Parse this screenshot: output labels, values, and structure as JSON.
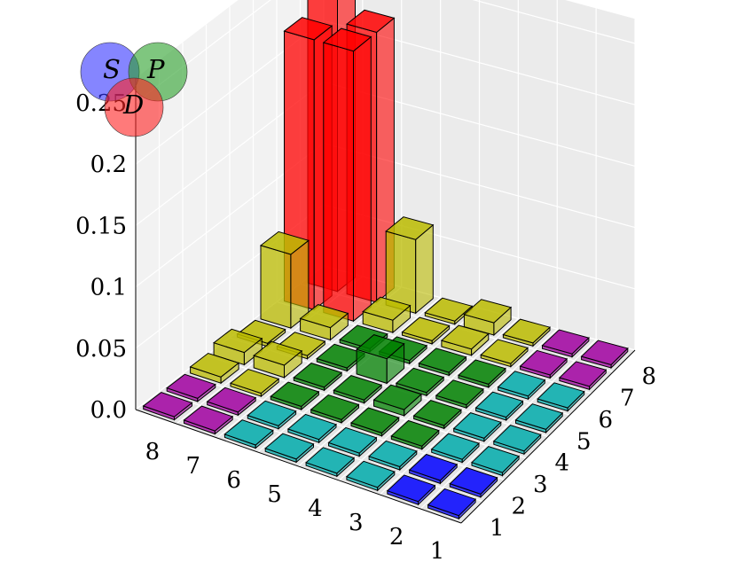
{
  "chart_data": {
    "type": "bar3d",
    "grid": true,
    "zlim": [
      0,
      0.25
    ],
    "z_ticks": [
      "0.0",
      "0.05",
      "0.1",
      "0.15",
      "0.2",
      "0.25"
    ],
    "x_ticks": [
      "1",
      "2",
      "3",
      "4",
      "5",
      "6",
      "7",
      "8"
    ],
    "y_ticks": [
      "1",
      "2",
      "3",
      "4",
      "5",
      "6",
      "7",
      "8"
    ],
    "colors": {
      "D": "#ff0000",
      "S": "#0000ff",
      "P": "#008000",
      "SP": "#00aaaa",
      "DS": "#a000a0",
      "DP": "#bbbb00"
    },
    "cells": [
      {
        "x": 1,
        "y": 1,
        "z": 0.0,
        "c": "S"
      },
      {
        "x": 1,
        "y": 2,
        "z": 0.0,
        "c": "S"
      },
      {
        "x": 1,
        "y": 3,
        "z": 0.0,
        "c": "SP"
      },
      {
        "x": 1,
        "y": 4,
        "z": 0.0,
        "c": "SP"
      },
      {
        "x": 1,
        "y": 5,
        "z": 0.0,
        "c": "SP"
      },
      {
        "x": 1,
        "y": 6,
        "z": 0.0,
        "c": "SP"
      },
      {
        "x": 1,
        "y": 7,
        "z": 0.0,
        "c": "DS"
      },
      {
        "x": 1,
        "y": 8,
        "z": 0.0,
        "c": "DS"
      },
      {
        "x": 2,
        "y": 1,
        "z": 0.0,
        "c": "S"
      },
      {
        "x": 2,
        "y": 2,
        "z": 0.0,
        "c": "S"
      },
      {
        "x": 2,
        "y": 3,
        "z": 0.0,
        "c": "SP"
      },
      {
        "x": 2,
        "y": 4,
        "z": 0.0,
        "c": "SP"
      },
      {
        "x": 2,
        "y": 5,
        "z": 0.0,
        "c": "SP"
      },
      {
        "x": 2,
        "y": 6,
        "z": 0.0,
        "c": "SP"
      },
      {
        "x": 2,
        "y": 7,
        "z": 0.0,
        "c": "DS"
      },
      {
        "x": 2,
        "y": 8,
        "z": 0.0,
        "c": "DS"
      },
      {
        "x": 3,
        "y": 1,
        "z": 0.0,
        "c": "SP"
      },
      {
        "x": 3,
        "y": 2,
        "z": 0.0,
        "c": "SP"
      },
      {
        "x": 3,
        "y": 3,
        "z": 0.0,
        "c": "P"
      },
      {
        "x": 3,
        "y": 4,
        "z": 0.0,
        "c": "P"
      },
      {
        "x": 3,
        "y": 5,
        "z": 0.0,
        "c": "P"
      },
      {
        "x": 3,
        "y": 6,
        "z": 0.0,
        "c": "P"
      },
      {
        "x": 3,
        "y": 7,
        "z": 0.0,
        "c": "DP"
      },
      {
        "x": 3,
        "y": 8,
        "z": 0.0,
        "c": "DP"
      },
      {
        "x": 4,
        "y": 1,
        "z": 0.0,
        "c": "SP"
      },
      {
        "x": 4,
        "y": 2,
        "z": 0.0,
        "c": "SP"
      },
      {
        "x": 4,
        "y": 3,
        "z": 0.0,
        "c": "P"
      },
      {
        "x": 4,
        "y": 4,
        "z": 0.005,
        "c": "P"
      },
      {
        "x": 4,
        "y": 5,
        "z": 0.0,
        "c": "P"
      },
      {
        "x": 4,
        "y": 6,
        "z": 0.0,
        "c": "P"
      },
      {
        "x": 4,
        "y": 7,
        "z": 0.005,
        "c": "DP"
      },
      {
        "x": 4,
        "y": 8,
        "z": 0.01,
        "c": "DP"
      },
      {
        "x": 5,
        "y": 1,
        "z": 0.0,
        "c": "SP"
      },
      {
        "x": 5,
        "y": 2,
        "z": 0.0,
        "c": "SP"
      },
      {
        "x": 5,
        "y": 3,
        "z": 0.0,
        "c": "P"
      },
      {
        "x": 5,
        "y": 4,
        "z": 0.0,
        "c": "P"
      },
      {
        "x": 5,
        "y": 5,
        "z": 0.02,
        "c": "P"
      },
      {
        "x": 5,
        "y": 6,
        "z": 0.0,
        "c": "P"
      },
      {
        "x": 5,
        "y": 7,
        "z": 0.0,
        "c": "DP"
      },
      {
        "x": 5,
        "y": 8,
        "z": 0.0,
        "c": "DP"
      },
      {
        "x": 6,
        "y": 1,
        "z": 0.0,
        "c": "SP"
      },
      {
        "x": 6,
        "y": 2,
        "z": 0.0,
        "c": "SP"
      },
      {
        "x": 6,
        "y": 3,
        "z": 0.0,
        "c": "P"
      },
      {
        "x": 6,
        "y": 4,
        "z": 0.0,
        "c": "P"
      },
      {
        "x": 6,
        "y": 5,
        "z": 0.0,
        "c": "P"
      },
      {
        "x": 6,
        "y": 6,
        "z": 0.0,
        "c": "P"
      },
      {
        "x": 6,
        "y": 7,
        "z": 0.01,
        "c": "DP"
      },
      {
        "x": 6,
        "y": 8,
        "z": 0.06,
        "c": "DP"
      },
      {
        "x": 7,
        "y": 1,
        "z": 0.0,
        "c": "DS"
      },
      {
        "x": 7,
        "y": 2,
        "z": 0.0,
        "c": "DS"
      },
      {
        "x": 7,
        "y": 3,
        "z": 0.0,
        "c": "DP"
      },
      {
        "x": 7,
        "y": 4,
        "z": 0.01,
        "c": "DP"
      },
      {
        "x": 7,
        "y": 5,
        "z": 0.0,
        "c": "DP"
      },
      {
        "x": 7,
        "y": 6,
        "z": 0.01,
        "c": "DP"
      },
      {
        "x": 7,
        "y": 7,
        "z": 0.22,
        "c": "D"
      },
      {
        "x": 7,
        "y": 8,
        "z": 0.22,
        "c": "D"
      },
      {
        "x": 8,
        "y": 1,
        "z": 0.0,
        "c": "DS"
      },
      {
        "x": 8,
        "y": 2,
        "z": 0.0,
        "c": "DS"
      },
      {
        "x": 8,
        "y": 3,
        "z": 0.005,
        "c": "DP"
      },
      {
        "x": 8,
        "y": 4,
        "z": 0.01,
        "c": "DP"
      },
      {
        "x": 8,
        "y": 5,
        "z": 0.0,
        "c": "DP"
      },
      {
        "x": 8,
        "y": 6,
        "z": 0.06,
        "c": "DP"
      },
      {
        "x": 8,
        "y": 7,
        "z": 0.22,
        "c": "D"
      },
      {
        "x": 8,
        "y": 8,
        "z": 0.24,
        "c": "D"
      }
    ]
  },
  "venn": {
    "labels": {
      "S": "S",
      "P": "P",
      "D": "D"
    },
    "colors": {
      "S": "#3333ff",
      "P": "#2aa02a",
      "D": "#ff2222"
    }
  }
}
